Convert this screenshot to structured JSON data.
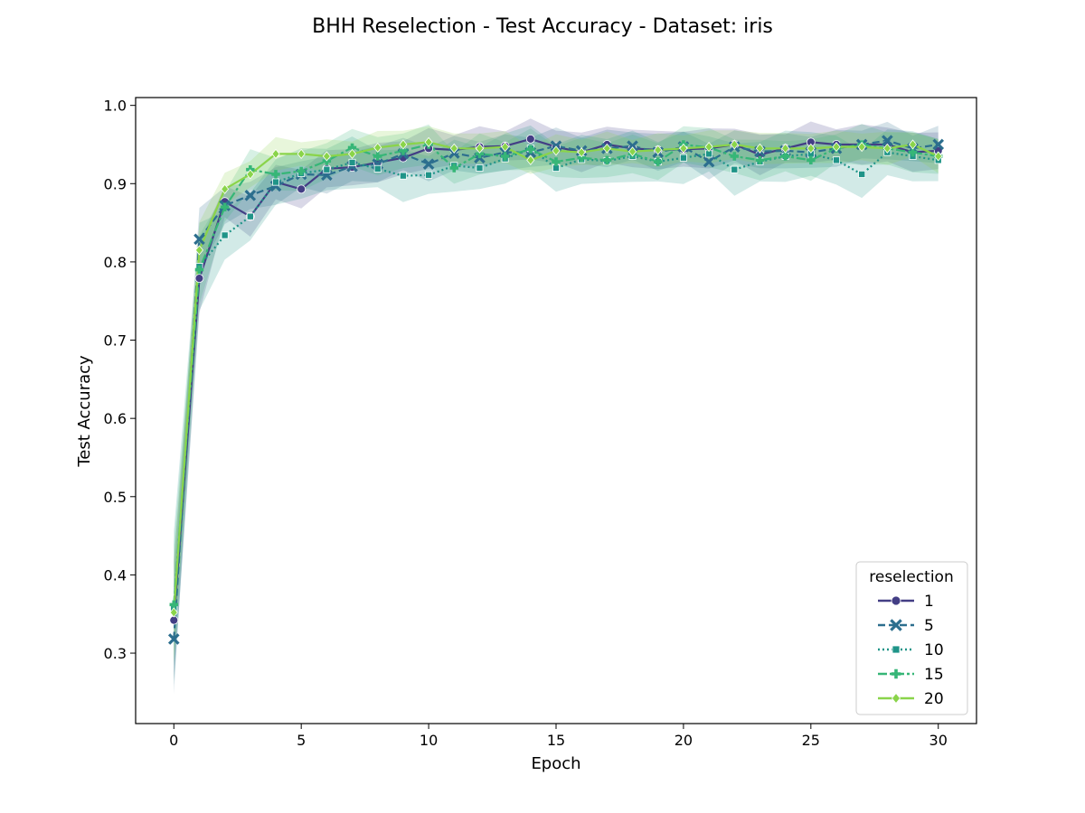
{
  "chart_data": {
    "type": "line",
    "title": "BHH Reselection - Test Accuracy - Dataset: iris",
    "xlabel": "Epoch",
    "ylabel": "Test Accuracy",
    "xlim": [
      -1.5,
      31.5
    ],
    "ylim": [
      0.21,
      1.01
    ],
    "xticks": [
      0,
      5,
      10,
      15,
      20,
      25,
      30
    ],
    "yticks": [
      0.3,
      0.4,
      0.5,
      0.6,
      0.7,
      0.8,
      0.9,
      1.0
    ],
    "ytick_labels": [
      "0.3",
      "0.4",
      "0.5",
      "0.6",
      "0.7",
      "0.8",
      "0.9",
      "1.0"
    ],
    "grid": false,
    "legend": {
      "title": "reselection",
      "placement": "lower-right"
    },
    "x": [
      0,
      1,
      2,
      3,
      4,
      5,
      6,
      7,
      8,
      9,
      10,
      11,
      12,
      13,
      14,
      15,
      16,
      17,
      18,
      19,
      20,
      21,
      22,
      23,
      24,
      25,
      26,
      27,
      28,
      29,
      30
    ],
    "series": [
      {
        "name": "1",
        "color": "#433e85",
        "dash": "",
        "marker": "circle",
        "values": [
          0.342,
          0.779,
          0.877,
          0.858,
          0.902,
          0.893,
          0.919,
          0.921,
          0.927,
          0.933,
          0.945,
          0.943,
          0.947,
          0.948,
          0.957,
          0.947,
          0.94,
          0.95,
          0.945,
          0.943,
          0.944,
          0.945,
          0.95,
          0.937,
          0.945,
          0.953,
          0.95,
          0.95,
          0.95,
          0.94,
          0.942
        ],
        "band": 0.022
      },
      {
        "name": "5",
        "color": "#2c6e8e",
        "dash": "8,4",
        "marker": "x",
        "values": [
          0.318,
          0.829,
          0.872,
          0.885,
          0.897,
          0.912,
          0.911,
          0.922,
          0.925,
          0.938,
          0.925,
          0.939,
          0.933,
          0.94,
          0.94,
          0.948,
          0.942,
          0.945,
          0.948,
          0.94,
          0.947,
          0.928,
          0.947,
          0.941,
          0.942,
          0.94,
          0.945,
          0.95,
          0.955,
          0.945,
          0.95
        ],
        "band": 0.02
      },
      {
        "name": "10",
        "color": "#1f9488",
        "dash": "2,3",
        "marker": "square",
        "values": [
          0.358,
          0.794,
          0.834,
          0.858,
          0.902,
          0.913,
          0.918,
          0.927,
          0.919,
          0.91,
          0.911,
          0.923,
          0.92,
          0.932,
          0.945,
          0.92,
          0.931,
          0.929,
          0.935,
          0.928,
          0.933,
          0.938,
          0.918,
          0.928,
          0.935,
          0.938,
          0.93,
          0.912,
          0.94,
          0.935,
          0.93
        ],
        "band": 0.028
      },
      {
        "name": "15",
        "color": "#36b677",
        "dash": "10,3,3,3",
        "marker": "plus",
        "values": [
          0.362,
          0.79,
          0.87,
          0.918,
          0.912,
          0.916,
          0.929,
          0.946,
          0.935,
          0.942,
          0.95,
          0.92,
          0.938,
          0.935,
          0.944,
          0.928,
          0.933,
          0.93,
          0.938,
          0.928,
          0.95,
          0.946,
          0.935,
          0.93,
          0.935,
          0.93,
          0.945,
          0.95,
          0.945,
          0.94,
          0.935
        ],
        "band": 0.022
      },
      {
        "name": "20",
        "color": "#8ad44a",
        "dash": "",
        "marker": "diamond",
        "values": [
          0.352,
          0.815,
          0.893,
          0.912,
          0.938,
          0.938,
          0.935,
          0.938,
          0.946,
          0.95,
          0.953,
          0.945,
          0.945,
          0.947,
          0.93,
          0.942,
          0.94,
          0.945,
          0.941,
          0.943,
          0.945,
          0.947,
          0.95,
          0.945,
          0.945,
          0.945,
          0.947,
          0.947,
          0.945,
          0.95,
          0.935
        ],
        "band": 0.018
      }
    ]
  }
}
